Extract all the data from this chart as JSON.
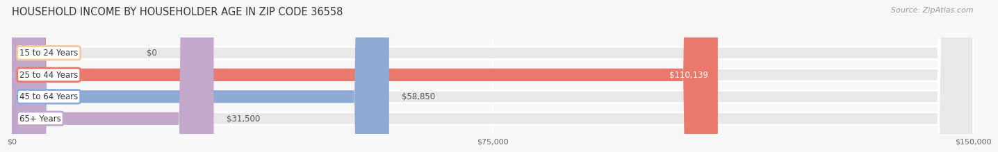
{
  "title": "HOUSEHOLD INCOME BY HOUSEHOLDER AGE IN ZIP CODE 36558",
  "source": "Source: ZipAtlas.com",
  "categories": [
    "15 to 24 Years",
    "25 to 44 Years",
    "45 to 64 Years",
    "65+ Years"
  ],
  "values": [
    0,
    110139,
    58850,
    31500
  ],
  "bar_colors": [
    "#f5c99a",
    "#e8796c",
    "#8faad4",
    "#c4a8cc"
  ],
  "value_labels": [
    "$0",
    "$110,139",
    "$58,850",
    "$31,500"
  ],
  "value_inside": [
    false,
    true,
    false,
    false
  ],
  "xlim": [
    0,
    150000
  ],
  "xtick_vals": [
    0,
    75000,
    150000
  ],
  "xtick_labels": [
    "$0",
    "$75,000",
    "$150,000"
  ],
  "background_color": "#f7f7f7",
  "bar_bg_color": "#e8e8e8",
  "bar_sep_color": "#ffffff",
  "title_fontsize": 10.5,
  "source_fontsize": 8,
  "bar_height": 0.58,
  "bar_gap": 0.42,
  "label_fontsize": 8.5,
  "value_fontsize": 8.5
}
